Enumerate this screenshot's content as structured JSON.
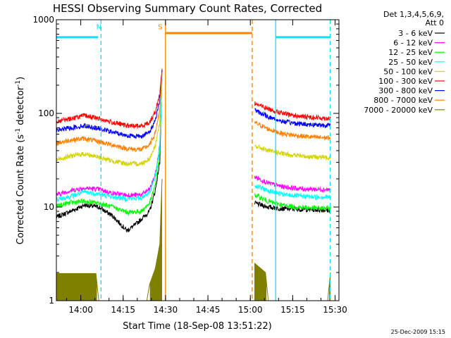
{
  "chart_data": {
    "type": "line",
    "title": "HESSI Observing Summary Count Rates, Corrected",
    "xlabel": "Start Time (18-Sep-08 13:51:22)",
    "ylabel_main": "Corrected Count Rate (s",
    "ylabel_sup1": "-1",
    "ylabel_mid": " detector",
    "ylabel_sup2": "-1",
    "ylabel_end": ")",
    "y_scale": "log",
    "ylim": [
      1,
      1000
    ],
    "xlim_minutes": [
      0,
      100
    ],
    "x_ticks": [
      {
        "label": "14:00",
        "min": 8.6333
      },
      {
        "label": "14:15",
        "min": 23.6333
      },
      {
        "label": "14:30",
        "min": 38.6333
      },
      {
        "label": "14:45",
        "min": 53.6333
      },
      {
        "label": "15:00",
        "min": 68.6333
      },
      {
        "label": "15:15",
        "min": 83.6333
      },
      {
        "label": "15:30",
        "min": 98.6333
      }
    ],
    "y_ticks": [
      {
        "label": "1",
        "value": 1
      },
      {
        "label": "10",
        "value": 10
      },
      {
        "label": "100",
        "value": 100
      },
      {
        "label": "1000",
        "value": 1000
      }
    ],
    "legend": {
      "header1": "Det 1,3,4,5,6,9,",
      "header2": "Att 0",
      "position": "right, outside plot"
    },
    "series": [
      {
        "name": "3 - 6 keV",
        "color": "#000000",
        "points": [
          [
            0,
            7.8
          ],
          [
            5,
            9
          ],
          [
            10,
            10.5
          ],
          [
            15,
            10
          ],
          [
            20,
            8
          ],
          [
            25,
            5.6
          ],
          [
            28,
            6.5
          ],
          [
            33,
            9
          ],
          [
            35,
            15
          ],
          [
            36.6,
            30
          ],
          [
            37.4,
            280
          ],
          [
            70,
            null
          ],
          [
            70.2,
            11
          ],
          [
            75,
            10
          ],
          [
            80,
            9.6
          ],
          [
            85,
            9.5
          ],
          [
            90,
            9.4
          ],
          [
            95,
            9.3
          ],
          [
            97,
            9.2
          ]
        ]
      },
      {
        "name": "6 - 12 keV",
        "color": "#ff00ff",
        "points": [
          [
            0,
            13.5
          ],
          [
            5,
            15
          ],
          [
            10,
            16
          ],
          [
            15,
            15.5
          ],
          [
            20,
            14
          ],
          [
            25,
            13.4
          ],
          [
            30,
            13.5
          ],
          [
            33,
            15.5
          ],
          [
            35,
            22
          ],
          [
            36.6,
            45
          ],
          [
            37.4,
            260
          ],
          [
            70,
            null
          ],
          [
            70.2,
            21
          ],
          [
            75,
            18
          ],
          [
            80,
            16.5
          ],
          [
            85,
            15.8
          ],
          [
            90,
            15.5
          ],
          [
            95,
            15.4
          ],
          [
            97,
            15.3
          ]
        ]
      },
      {
        "name": "12 - 25 keV",
        "color": "#00ff00",
        "points": [
          [
            0,
            10.2
          ],
          [
            5,
            11.2
          ],
          [
            10,
            11.5
          ],
          [
            15,
            11
          ],
          [
            20,
            10
          ],
          [
            25,
            8.8
          ],
          [
            30,
            9
          ],
          [
            33,
            11
          ],
          [
            35,
            17
          ],
          [
            36.6,
            40
          ],
          [
            37.4,
            250
          ],
          [
            70,
            null
          ],
          [
            70.2,
            13.5
          ],
          [
            75,
            11.5
          ],
          [
            80,
            10.5
          ],
          [
            85,
            10
          ],
          [
            90,
            9.8
          ],
          [
            95,
            9.7
          ],
          [
            97,
            9.7
          ]
        ]
      },
      {
        "name": "25 - 50 keV",
        "color": "#00ffff",
        "points": [
          [
            0,
            12
          ],
          [
            5,
            13
          ],
          [
            10,
            14.5
          ],
          [
            15,
            13.8
          ],
          [
            20,
            12.8
          ],
          [
            25,
            12.3
          ],
          [
            30,
            12.5
          ],
          [
            33,
            14.5
          ],
          [
            35,
            21
          ],
          [
            36.6,
            45
          ],
          [
            37.4,
            255
          ],
          [
            70,
            null
          ],
          [
            70.2,
            17
          ],
          [
            75,
            15
          ],
          [
            80,
            13.6
          ],
          [
            85,
            13.2
          ],
          [
            90,
            12.9
          ],
          [
            95,
            12.8
          ],
          [
            97,
            12.8
          ]
        ]
      },
      {
        "name": "50 - 100 keV",
        "color": "#d4d400",
        "points": [
          [
            0,
            32
          ],
          [
            5,
            35
          ],
          [
            10,
            37
          ],
          [
            15,
            34
          ],
          [
            20,
            31
          ],
          [
            25,
            29
          ],
          [
            30,
            29
          ],
          [
            33,
            33
          ],
          [
            35,
            45
          ],
          [
            36.6,
            80
          ],
          [
            37.4,
            265
          ],
          [
            70,
            null
          ],
          [
            70.2,
            45
          ],
          [
            75,
            40
          ],
          [
            80,
            37
          ],
          [
            85,
            35.5
          ],
          [
            90,
            34.5
          ],
          [
            95,
            34
          ],
          [
            97,
            34
          ]
        ]
      },
      {
        "name": "100 - 300 keV",
        "color": "#ff0000",
        "points": [
          [
            0,
            82
          ],
          [
            5,
            88
          ],
          [
            10,
            95
          ],
          [
            15,
            88
          ],
          [
            20,
            80
          ],
          [
            25,
            74
          ],
          [
            30,
            73
          ],
          [
            33,
            80
          ],
          [
            35,
            105
          ],
          [
            36.6,
            160
          ],
          [
            37.4,
            300
          ],
          [
            70,
            null
          ],
          [
            70.2,
            128
          ],
          [
            75,
            112
          ],
          [
            80,
            100
          ],
          [
            85,
            94
          ],
          [
            90,
            91
          ],
          [
            95,
            89
          ],
          [
            97,
            89
          ]
        ]
      },
      {
        "name": "300 - 800 keV",
        "color": "#0000ff",
        "points": [
          [
            0,
            66
          ],
          [
            5,
            70
          ],
          [
            10,
            74
          ],
          [
            15,
            69
          ],
          [
            20,
            63
          ],
          [
            25,
            58
          ],
          [
            30,
            57
          ],
          [
            33,
            63
          ],
          [
            35,
            85
          ],
          [
            36.6,
            140
          ],
          [
            37.4,
            290
          ],
          [
            70,
            null
          ],
          [
            70.2,
            108
          ],
          [
            75,
            92
          ],
          [
            80,
            82
          ],
          [
            85,
            78
          ],
          [
            90,
            76
          ],
          [
            95,
            75
          ],
          [
            97,
            75
          ]
        ]
      },
      {
        "name": "800 - 7000 keV",
        "color": "#ff8000",
        "points": [
          [
            0,
            48
          ],
          [
            5,
            52
          ],
          [
            10,
            54
          ],
          [
            15,
            50
          ],
          [
            20,
            46
          ],
          [
            25,
            42
          ],
          [
            30,
            41
          ],
          [
            33,
            46
          ],
          [
            35,
            62
          ],
          [
            36.6,
            110
          ],
          [
            37.4,
            275
          ],
          [
            70,
            null
          ],
          [
            70.2,
            80
          ],
          [
            75,
            68
          ],
          [
            80,
            61
          ],
          [
            85,
            58
          ],
          [
            90,
            56
          ],
          [
            95,
            55
          ],
          [
            97,
            55
          ]
        ]
      },
      {
        "name": "7000 - 20000 keV",
        "color": "#808000",
        "points": [
          [
            0,
            1.95
          ],
          [
            10,
            1.95
          ],
          [
            14,
            1.95
          ],
          [
            15,
            1
          ],
          [
            32,
            1
          ],
          [
            33,
            1.5
          ],
          [
            35,
            2.2
          ],
          [
            36.6,
            4
          ],
          [
            37.4,
            20
          ],
          [
            70,
            null
          ],
          [
            70.2,
            2.5
          ],
          [
            74,
            2
          ],
          [
            75,
            1
          ],
          [
            96,
            1
          ],
          [
            97,
            2
          ]
        ]
      }
    ],
    "annotations": [
      {
        "text": "N",
        "color": "#00e5ff",
        "min": 15.8
      },
      {
        "text": "S",
        "color": "#ff8000",
        "min": 37.5
      }
    ],
    "bars": [
      {
        "color": "#00e5ff",
        "from": 0,
        "to": 14.8,
        "value": 650
      },
      {
        "color": "#ff8000",
        "from": 38.6,
        "to": 69.3,
        "value": 720
      },
      {
        "color": "#00e5ff",
        "from": 77.6,
        "to": 96.9,
        "value": 650
      }
    ],
    "vlines": [
      {
        "color": "#00e5ff",
        "style": "dashed",
        "min": 15.8
      },
      {
        "color": "#ff8000",
        "style": "solid",
        "min": 38.6
      },
      {
        "color": "#ff8000",
        "style": "dashed",
        "min": 69.3
      },
      {
        "color": "#00e5ff",
        "style": "solid",
        "min": 77.6
      },
      {
        "color": "#00e5ff",
        "style": "dashed",
        "min": 96.9
      }
    ],
    "footer_date": "25-Dec-2009 15:15"
  }
}
